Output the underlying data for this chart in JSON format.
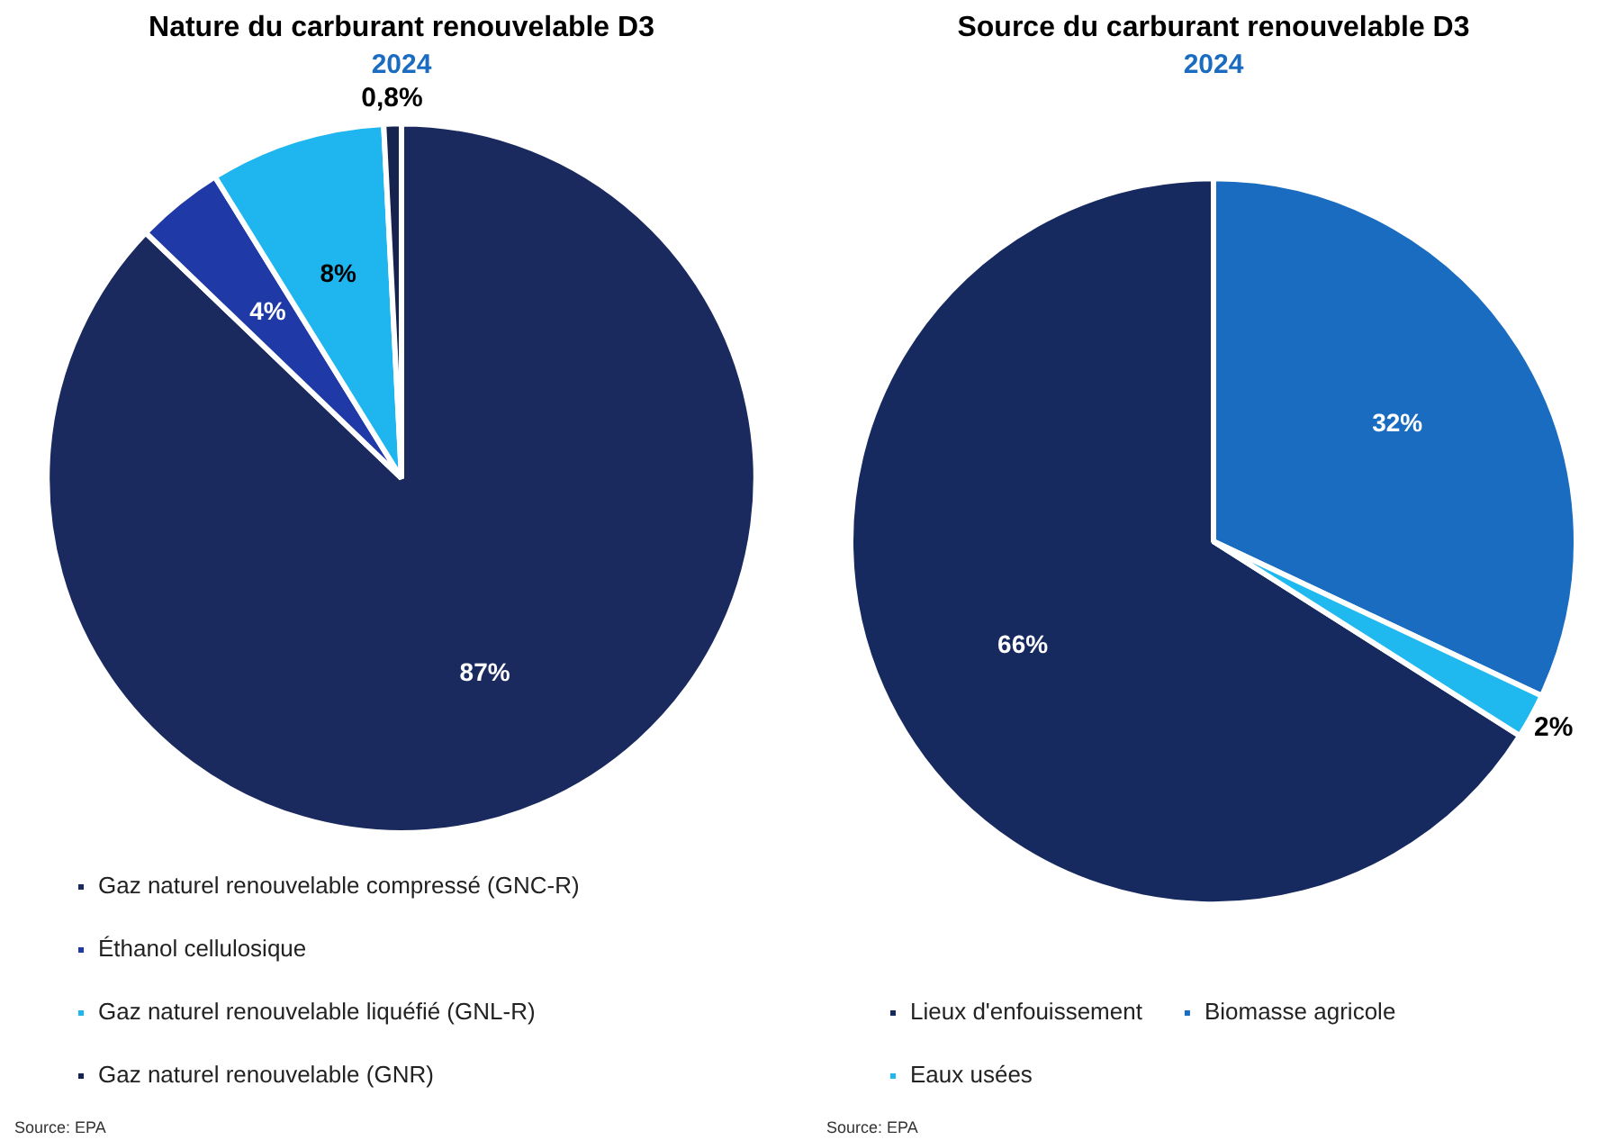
{
  "chart_data": [
    {
      "type": "pie",
      "title": "Nature du carburant renouvelable D3",
      "subtitle": "2024",
      "categories": [
        "Gaz naturel renouvelable compressé (GNC-R)",
        "Éthanol cellulosique",
        "Gaz naturel renouvelable liquéfié (GNL-R)",
        "Gaz naturel renouvelable (GNR)"
      ],
      "values": [
        87,
        4,
        8,
        0.8
      ],
      "value_labels": [
        "87%",
        "4%",
        "8%",
        "0,8%"
      ],
      "colors": [
        "#1a2a5e",
        "#1f3aa6",
        "#1fb6f0",
        "#16234f"
      ],
      "legend": "bottom",
      "annotations": [
        "Source: EPA"
      ]
    },
    {
      "type": "pie",
      "title": "Source du carburant renouvelable D3",
      "subtitle": "2024",
      "categories": [
        "Lieux d'enfouissement",
        "Biomasse agricole",
        "Eaux usées"
      ],
      "values": [
        66,
        32,
        2
      ],
      "value_labels": [
        "66%",
        "32%",
        "2%"
      ],
      "colors": [
        "#172a5f",
        "#1a6cc0",
        "#1fb9f0"
      ],
      "legend": "bottom",
      "annotations": [
        "Source: EPA"
      ]
    }
  ]
}
